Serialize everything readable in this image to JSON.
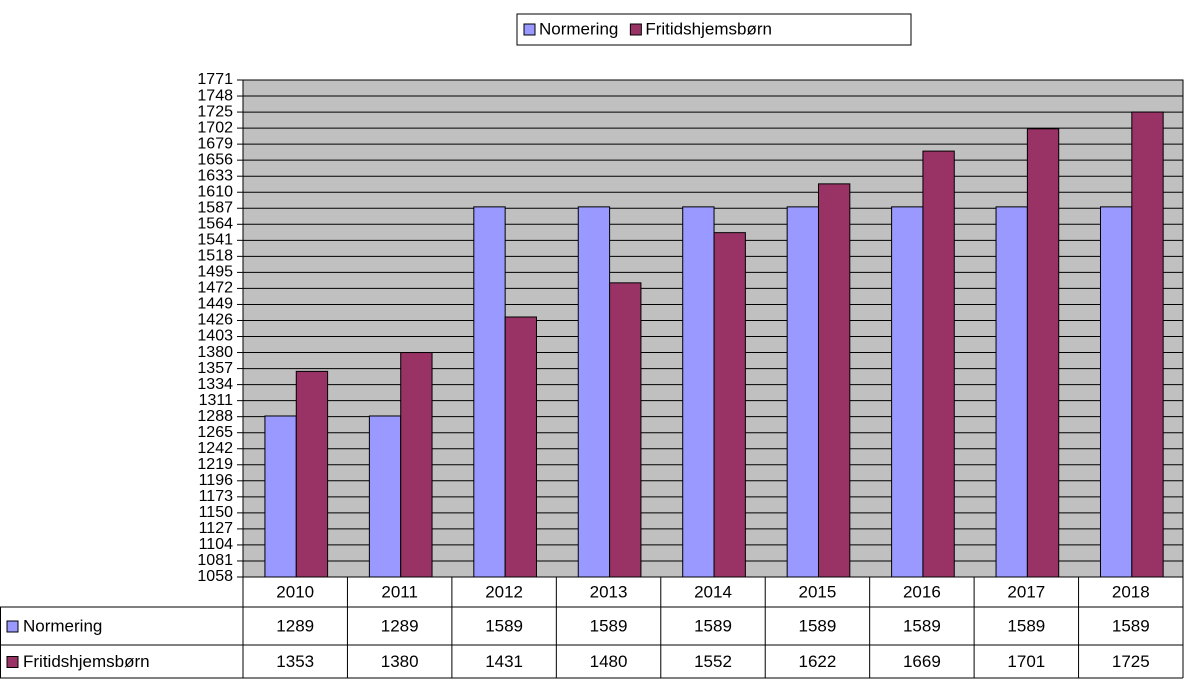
{
  "chart_data": {
    "type": "bar",
    "categories": [
      "2010",
      "2011",
      "2012",
      "2013",
      "2014",
      "2015",
      "2016",
      "2017",
      "2018"
    ],
    "series": [
      {
        "name": "Normering",
        "color": "#9999ff",
        "values": [
          1289,
          1289,
          1589,
          1589,
          1589,
          1589,
          1589,
          1589,
          1589
        ]
      },
      {
        "name": "Fritidshjemsbørn",
        "color": "#993366",
        "values": [
          1353,
          1380,
          1431,
          1480,
          1552,
          1622,
          1669,
          1701,
          1725
        ]
      }
    ],
    "ylim": [
      1058,
      1771
    ],
    "yticks": [
      1058,
      1081,
      1104,
      1127,
      1150,
      1173,
      1196,
      1219,
      1242,
      1265,
      1288,
      1311,
      1334,
      1357,
      1380,
      1403,
      1426,
      1449,
      1472,
      1495,
      1518,
      1541,
      1564,
      1587,
      1610,
      1633,
      1656,
      1679,
      1702,
      1725,
      1748,
      1771
    ],
    "grid": true,
    "legend": "top",
    "plot_background": "#c0c0c0"
  }
}
